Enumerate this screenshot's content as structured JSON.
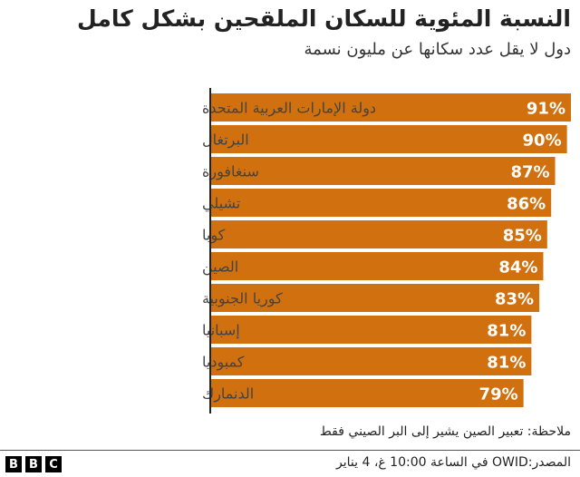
{
  "chart_data": {
    "type": "bar",
    "orientation": "horizontal",
    "title": "النسبة المئوية للسكان الملقحين بشكل كامل",
    "subtitle": "دول لا يقل عدد سكانها عن مليون نسمة",
    "categories": [
      "دولة الإمارات العربية المتحدة",
      "البرتغال",
      "سنغافورة",
      "تشيلي",
      "كوبا",
      "الصين",
      "كوريا الجنوبية",
      "إسبانيا",
      "كمبوديا",
      "الدنمارك"
    ],
    "values": [
      91,
      90,
      87,
      86,
      85,
      84,
      83,
      81,
      81,
      79
    ],
    "value_labels": [
      "91%",
      "90%",
      "87%",
      "86%",
      "85%",
      "84%",
      "83%",
      "81%",
      "81%",
      "79%"
    ],
    "xlim": [
      0,
      91
    ],
    "grid": false,
    "bar_color": "#d1700e"
  },
  "note": "ملاحظة: تعبير الصين يشير إلى البر الصيني فقط",
  "source": "المصدر:OWID في الساعة 10:00 غ، 4 يناير",
  "logo": [
    "B",
    "B",
    "C"
  ]
}
